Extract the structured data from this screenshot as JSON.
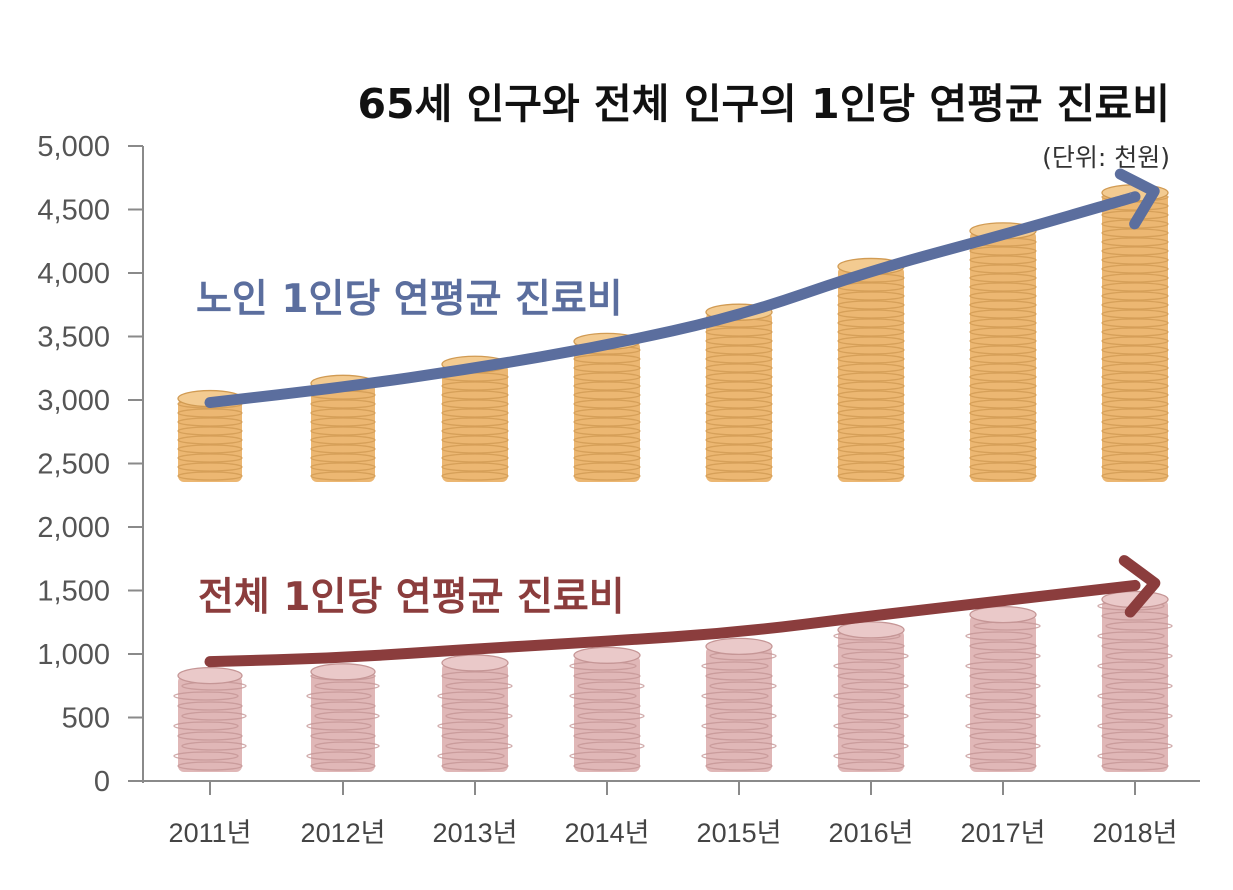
{
  "chart_data": {
    "type": "line",
    "title": "65세 인구와 전체 인구의 1인당 연평균 진료비",
    "unit_label": "(단위: 천원)",
    "categories": [
      "2011년",
      "2012년",
      "2013년",
      "2014년",
      "2015년",
      "2016년",
      "2017년",
      "2018년"
    ],
    "ylim": [
      0,
      5000
    ],
    "yticks": [
      "0",
      "500",
      "1,000",
      "1,500",
      "2,000",
      "2,500",
      "3,000",
      "3,500",
      "4,000",
      "4,500",
      "5,000"
    ],
    "ytick_values": [
      0,
      500,
      1000,
      1500,
      2000,
      2500,
      3000,
      3500,
      4000,
      4500,
      5000
    ],
    "series": [
      {
        "name": "노인 1인당 연평균 진료비",
        "color": "#5b6e9e",
        "coin_color": "#e9ab5a",
        "values": [
          2980,
          3100,
          3250,
          3430,
          3660,
          4020,
          4300,
          4600
        ]
      },
      {
        "name": "전체 1인당 연평균 진료비",
        "color": "#8b3d3d",
        "coin_color": "#d9a6a6",
        "values": [
          940,
          970,
          1040,
          1100,
          1170,
          1300,
          1420,
          1540
        ]
      }
    ],
    "grid": false
  }
}
